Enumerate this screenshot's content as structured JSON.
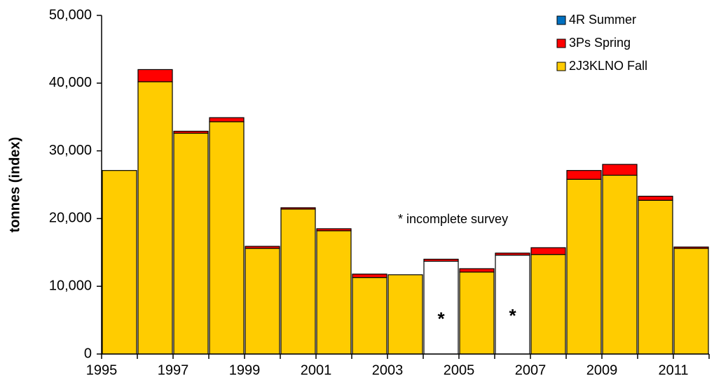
{
  "chart_data": {
    "type": "stacked_bar",
    "y_label": "tonnes (index)",
    "annotation": "* incomplete survey",
    "categories": [
      "1995",
      null,
      "1997",
      null,
      "1999",
      null,
      "2001",
      null,
      "2003",
      null,
      "2005",
      null,
      "2007",
      null,
      "2009",
      null,
      "2011"
    ],
    "series": [
      {
        "name": "2J3KLNO Fall",
        "color": "#ffcc00",
        "colors": [
          "#ffcc00",
          "#ffcc00",
          "#ffcc00",
          "#ffcc00",
          "#ffcc00",
          "#ffcc00",
          "#ffcc00",
          "#ffcc00",
          "#ffcc00",
          "#ffffff",
          "#ffcc00",
          "#ffffff",
          "#ffcc00",
          "#ffcc00",
          "#ffcc00",
          "#ffcc00",
          "#ffcc00"
        ],
        "bar_labels": [
          null,
          null,
          null,
          null,
          null,
          null,
          null,
          null,
          null,
          "*",
          null,
          "*",
          null,
          null,
          null,
          null,
          null
        ],
        "values": [
          27100,
          40200,
          32600,
          34300,
          15600,
          21400,
          18200,
          11300,
          11700,
          13700,
          12100,
          14600,
          14700,
          25800,
          26400,
          22700,
          15600
        ]
      },
      {
        "name": "3Ps Spring",
        "color": "#ff0000",
        "values": [
          0,
          1800,
          300,
          600,
          300,
          200,
          300,
          500,
          0,
          300,
          500,
          300,
          1000,
          1300,
          1600,
          600,
          200
        ]
      },
      {
        "name": "4R Summer",
        "color": "#0070c0",
        "values": [
          0,
          0,
          0,
          0,
          0,
          0,
          0,
          0,
          0,
          0,
          0,
          0,
          0,
          0,
          0,
          0,
          0
        ]
      }
    ],
    "ylim": [
      0,
      50000
    ],
    "yticks": [
      0,
      {
        "value": 10000,
        "label": "10,000"
      },
      {
        "value": 20000,
        "label": "20,000"
      },
      {
        "value": 30000,
        "label": "30,000"
      },
      {
        "value": 40000,
        "label": "40,000"
      },
      {
        "value": 50000,
        "label": "50,000"
      }
    ],
    "legend": "upper right"
  }
}
